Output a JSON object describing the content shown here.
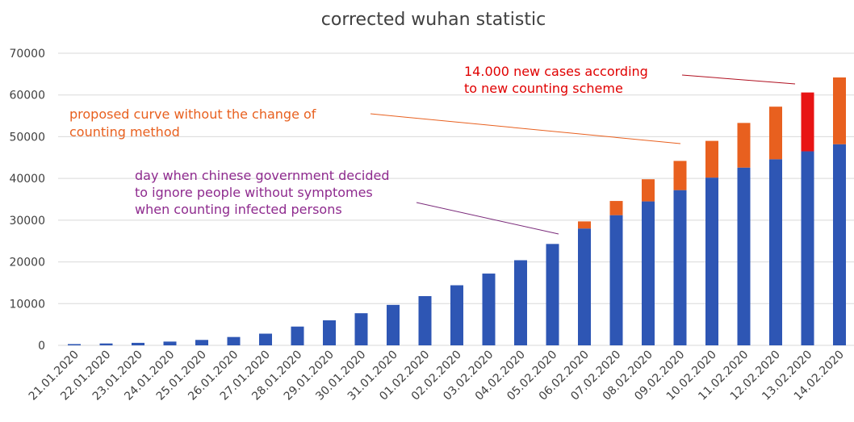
{
  "chart_data": {
    "type": "bar",
    "stacked": true,
    "title": "corrected wuhan statistic",
    "xlabel": "",
    "ylabel": "",
    "ylim": [
      0,
      70000
    ],
    "yticks": [
      0,
      10000,
      20000,
      30000,
      40000,
      50000,
      60000,
      70000
    ],
    "grid": true,
    "legend": "none",
    "categories": [
      "21.01.2020",
      "22.01.2020",
      "23.01.2020",
      "24.01.2020",
      "25.01.2020",
      "26.01.2020",
      "27.01.2020",
      "28.01.2020",
      "29.01.2020",
      "30.01.2020",
      "31.01.2020",
      "01.02.2020",
      "02.02.2020",
      "03.02.2020",
      "04.02.2020",
      "05.02.2020",
      "06.02.2020",
      "07.02.2020",
      "08.02.2020",
      "09.02.2020",
      "10.02.2020",
      "11.02.2020",
      "12.02.2020",
      "13.02.2020",
      "14.02.2020"
    ],
    "series": [
      {
        "color": "#2e56b4",
        "values": [
          300,
          450,
          600,
          900,
          1300,
          2000,
          2800,
          4500,
          6000,
          7700,
          9700,
          11800,
          14400,
          17200,
          20400,
          24300,
          28000,
          31200,
          34500,
          37200,
          40200,
          42600,
          44600,
          46500,
          48200
        ]
      },
      {
        "color": "#e8601f",
        "values": [
          0,
          0,
          0,
          0,
          0,
          0,
          0,
          0,
          0,
          0,
          0,
          0,
          0,
          0,
          0,
          0,
          1700,
          3400,
          5300,
          7000,
          8800,
          10700,
          12600,
          0,
          16000
        ]
      },
      {
        "color": "#e81414",
        "values": [
          0,
          0,
          0,
          0,
          0,
          0,
          0,
          0,
          0,
          0,
          0,
          0,
          0,
          0,
          0,
          0,
          0,
          0,
          0,
          0,
          0,
          0,
          0,
          14100,
          0
        ]
      }
    ],
    "annotations": [
      {
        "lines": [
          "14.000 new cases according",
          "to new counting scheme"
        ],
        "color": "#e00000"
      },
      {
        "lines": [
          "proposed curve without the change of",
          "counting method"
        ],
        "color": "#e8601f"
      },
      {
        "lines": [
          "day when chinese government decided",
          "to ignore people without symptomes",
          "when counting infected persons"
        ],
        "color": "#8e2a8e"
      }
    ]
  }
}
